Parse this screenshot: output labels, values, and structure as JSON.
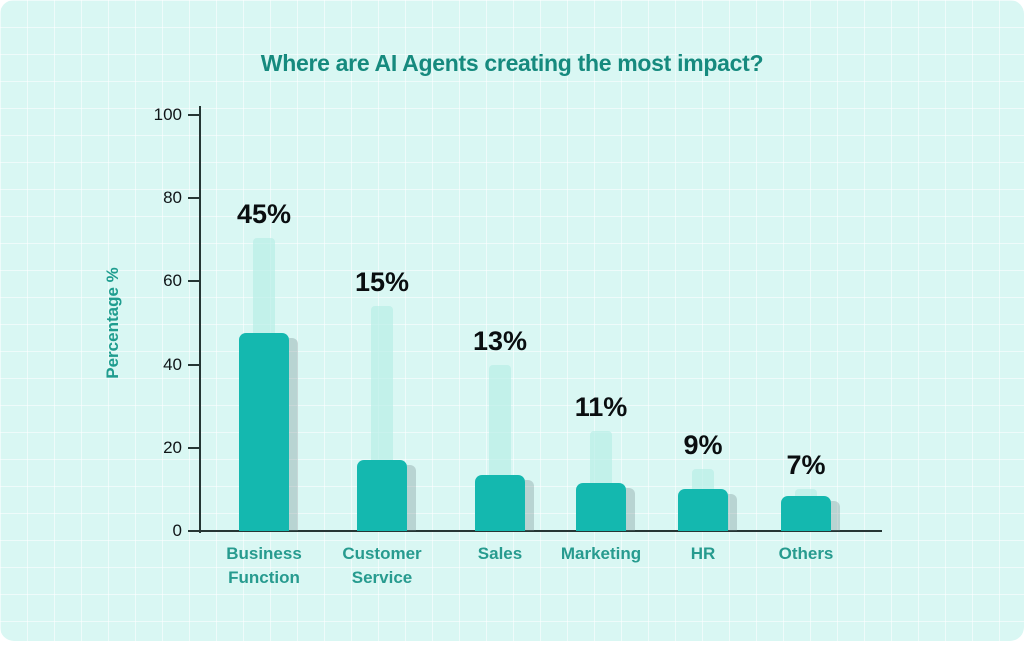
{
  "title": "Where are AI Agents creating the most impact?",
  "y_axis": {
    "label": "Percentage %",
    "ticks": [
      0,
      20,
      40,
      60,
      80,
      100
    ]
  },
  "colors": {
    "background": "#d9f7f3",
    "grid_line": "rgba(255,255,255,0.55)",
    "bar": "#14b8af",
    "bar_ghost": "rgba(183,237,230,0.68)",
    "bar_shadow": "rgba(110,132,136,0.30)",
    "axis": "#253634",
    "title_text": "#168a7e",
    "category_text": "#279b8f",
    "tick_text": "#101518",
    "value_text": "#0a0e10"
  },
  "chart_data": {
    "type": "bar",
    "title": "Where are AI Agents creating the most impact?",
    "categories": [
      "Business Function",
      "Customer Service",
      "Sales",
      "Marketing",
      "HR",
      "Others"
    ],
    "values": [
      45,
      15,
      13,
      11,
      9,
      7
    ],
    "value_labels": [
      "45%",
      "15%",
      "13%",
      "11%",
      "9%",
      "7%"
    ],
    "bar_display_heights": [
      47.5,
      17,
      13.5,
      11.5,
      10,
      8.5
    ],
    "ghost_extension_heights": [
      70.5,
      54,
      40,
      24,
      15,
      10
    ],
    "xlabel": "",
    "ylabel": "Percentage %",
    "ylim": [
      0,
      100
    ],
    "grid": true,
    "legend": false
  }
}
